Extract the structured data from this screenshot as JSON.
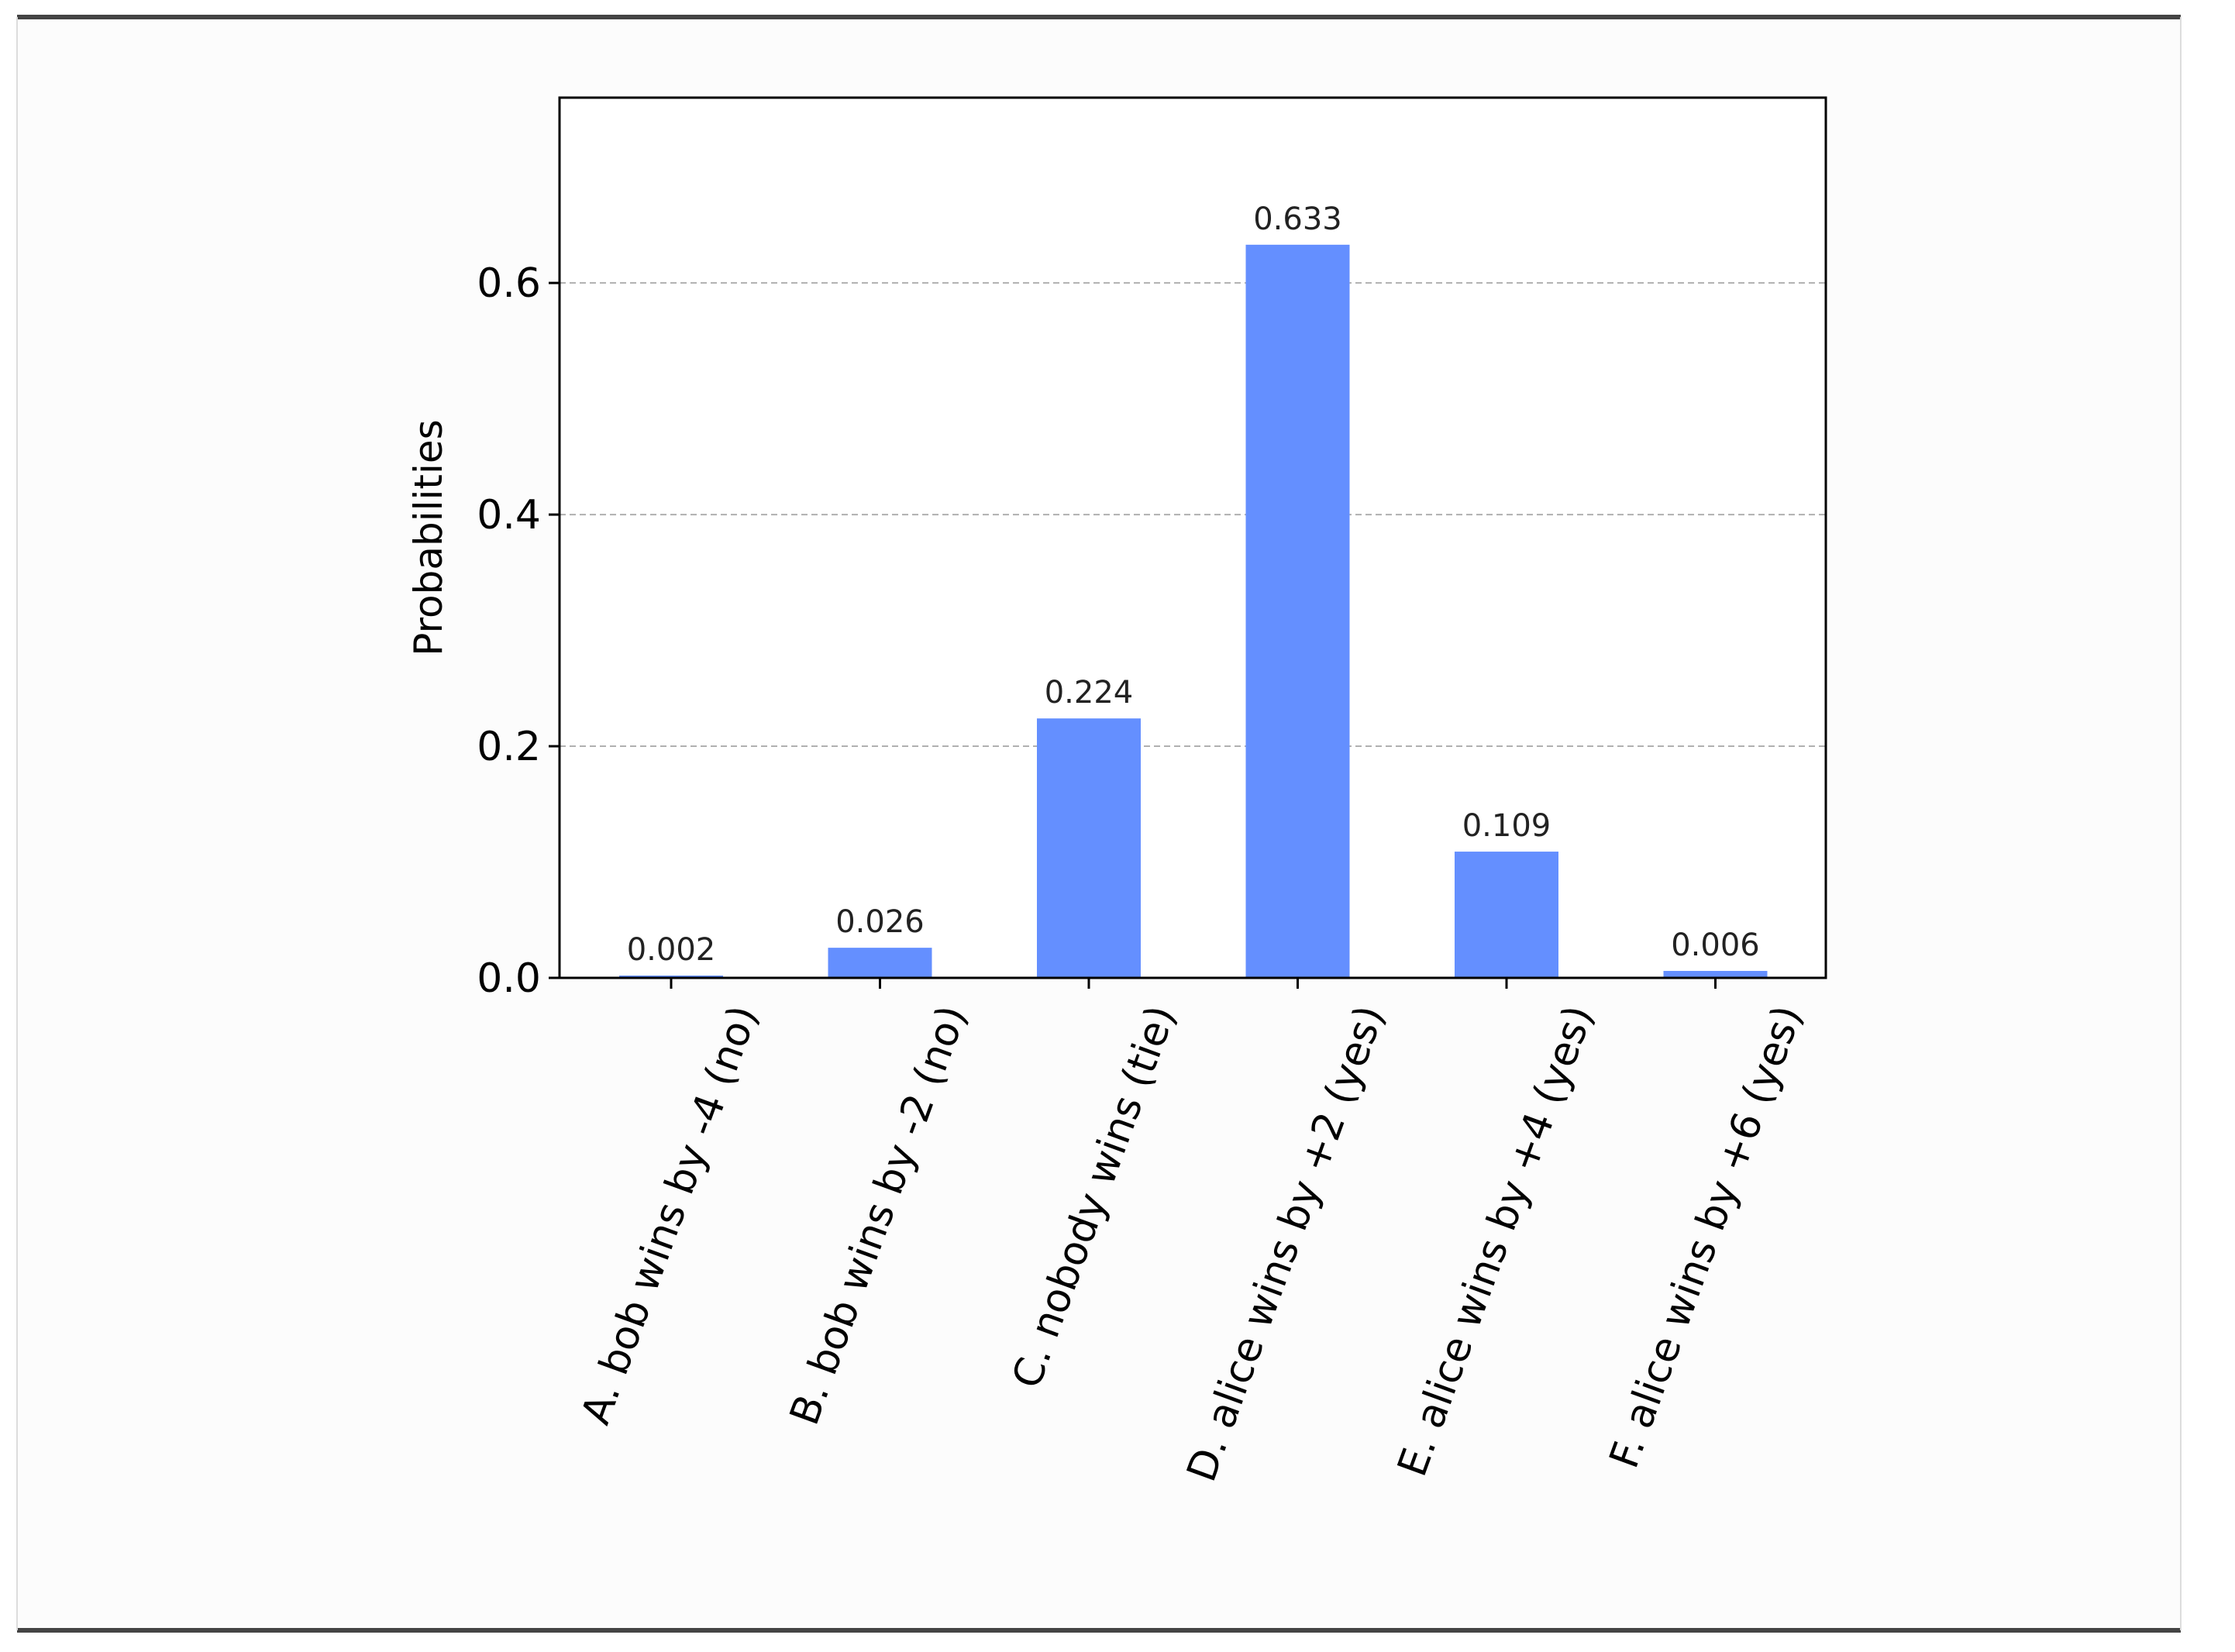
{
  "colors": {
    "bar": "#648fff",
    "frame_line": "#444444",
    "grid": "#b0b0b0",
    "axis": "#000000",
    "background": "#fcfcfc"
  },
  "chart_data": {
    "type": "bar",
    "categories": [
      "A. bob wins by -4 (no)",
      "B. bob wins by -2 (no)",
      "C. nobody wins (tie)",
      "D. alice wins by +2 (yes)",
      "E. alice wins by +4 (yes)",
      "F. alice wins by +6 (yes)"
    ],
    "values": [
      0.002,
      0.026,
      0.224,
      0.633,
      0.109,
      0.006
    ],
    "data_labels": [
      "0.002",
      "0.026",
      "0.224",
      "0.633",
      "0.109",
      "0.006"
    ],
    "ylabel": "Probabilities",
    "xlabel": "",
    "title": "",
    "ylim": [
      0,
      0.76
    ],
    "yticks": [
      0.0,
      0.2,
      0.4,
      0.6
    ],
    "ytick_labels": [
      "0.0",
      "0.2",
      "0.4",
      "0.6"
    ],
    "grid": "y-dashed",
    "legend": "none"
  }
}
